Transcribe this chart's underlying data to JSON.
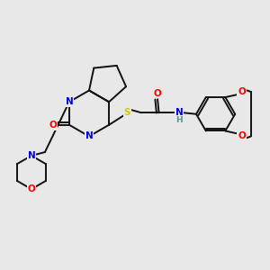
{
  "background_color": "#e8e8e8",
  "atom_colors": {
    "N": "#0000dd",
    "O": "#ff0000",
    "S": "#cccc00",
    "C": "#111111",
    "H": "#4a9999"
  },
  "lw": 1.4,
  "fs": 7.5
}
